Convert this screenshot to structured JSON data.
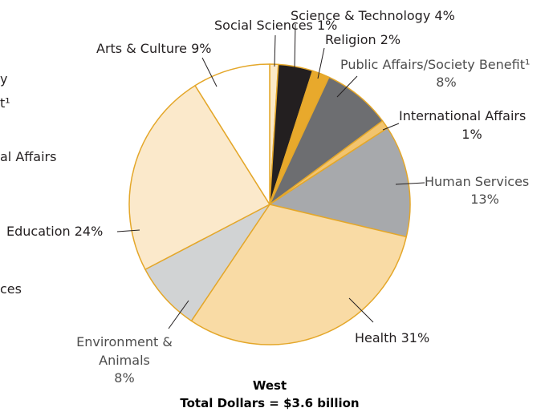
{
  "chart_data": {
    "type": "pie",
    "title": "West",
    "subtitle": "Total Dollars = $3.6 billion",
    "slices": [
      {
        "label": "Social Sciences",
        "value_label": "1%",
        "value": 1,
        "color": "#fbe9c8"
      },
      {
        "label": "Science & Technology",
        "value_label": "4%",
        "value": 4,
        "color": "#231f20"
      },
      {
        "label": "Religion",
        "value_label": "2%",
        "value": 2,
        "color": "#e8a92c"
      },
      {
        "label": "Public Affairs/Society Benefit¹",
        "value_label": "8%",
        "value": 8,
        "color": "#6d6e71"
      },
      {
        "label": "International Affairs",
        "value_label": "1%",
        "value": 1,
        "color": "#f2c46e"
      },
      {
        "label": "Human Services",
        "value_label": "13%",
        "value": 13,
        "color": "#a7a9ac"
      },
      {
        "label": "Health",
        "value_label": "31%",
        "value": 31,
        "color": "#f9dba5"
      },
      {
        "label": "Environment & Animals",
        "value_label": "8%",
        "value": 8,
        "color": "#d1d3d4"
      },
      {
        "label": "Education",
        "value_label": "24%",
        "value": 24,
        "color": "#fbe9cb"
      },
      {
        "label": "Arts & Culture",
        "value_label": "9%",
        "value": 9,
        "color": "#ffffff"
      }
    ],
    "slice_outline_color": "#e4a72a",
    "legend": "none"
  },
  "cropped_neighbor_fragments": [
    "y",
    "t¹",
    "al Affairs",
    "ces"
  ]
}
